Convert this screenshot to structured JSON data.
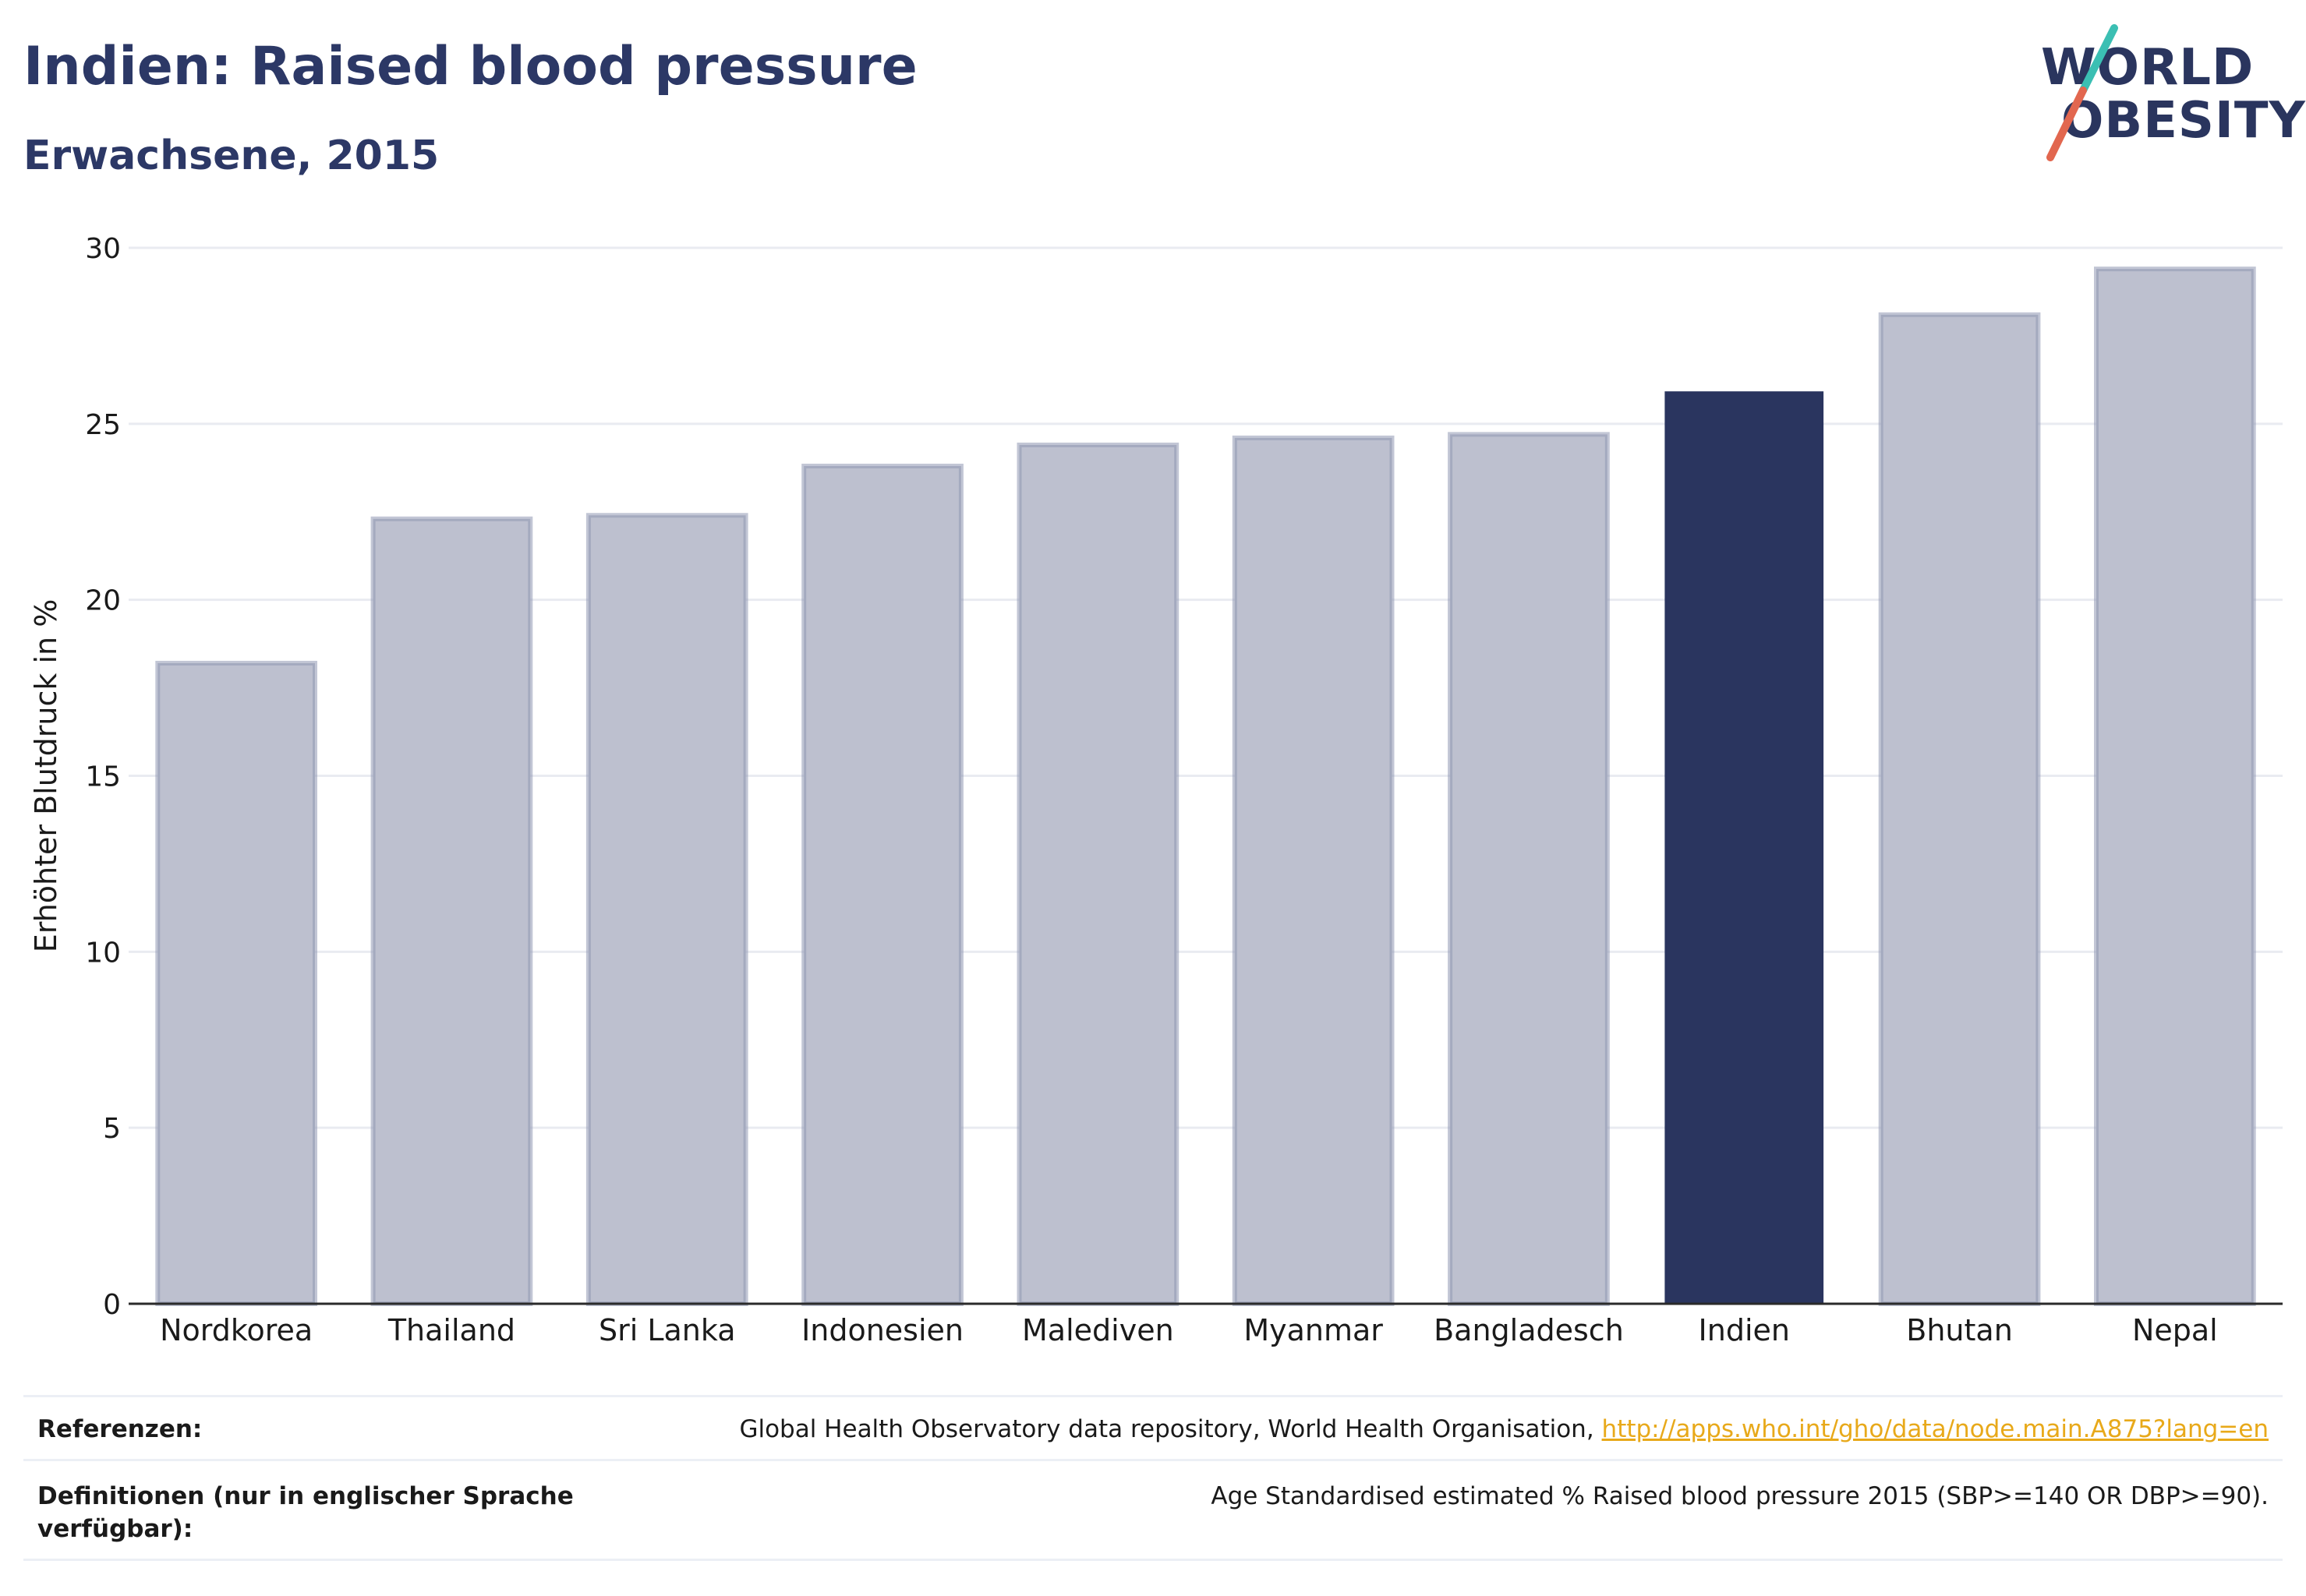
{
  "header": {
    "title": "Indien: Raised blood pressure",
    "subtitle": "Erwachsene, 2015"
  },
  "logo": {
    "line1": "WORLD",
    "line2": "OBESITY",
    "slash_colors": [
      "#3bbfb3",
      "#e2674f"
    ]
  },
  "colors": {
    "bar": "#bdc0cf",
    "bar_border": "#8f97b3",
    "highlight": "#2a355f",
    "grid": "#e9ebf1",
    "axis": "#2a2a2a"
  },
  "chart_data": {
    "type": "bar",
    "categories": [
      "Nordkorea",
      "Thailand",
      "Sri Lanka",
      "Indonesien",
      "Malediven",
      "Myanmar",
      "Bangladesch",
      "Indien",
      "Bhutan",
      "Nepal"
    ],
    "values": [
      18.2,
      22.3,
      22.4,
      23.8,
      24.4,
      24.6,
      24.7,
      25.9,
      28.1,
      29.4
    ],
    "highlight": "Indien",
    "ylabel": "Erhöhter Blutdruck in %",
    "xlabel": "",
    "ylim": [
      0,
      30
    ],
    "yticks": [
      0,
      5,
      10,
      15,
      20,
      25,
      30
    ],
    "grid": true
  },
  "footer": {
    "references_label": "Referenzen:",
    "references_text": "Global Health Observatory data repository, World Health Organisation, ",
    "references_link": "http://apps.who.int/gho/data/node.main.A875?lang=en",
    "definitions_label": "Definitionen (nur in englischer Sprache verfügbar):",
    "definitions_text": "Age Standardised estimated % Raised blood pressure 2015 (SBP>=140 OR DBP>=90)."
  }
}
